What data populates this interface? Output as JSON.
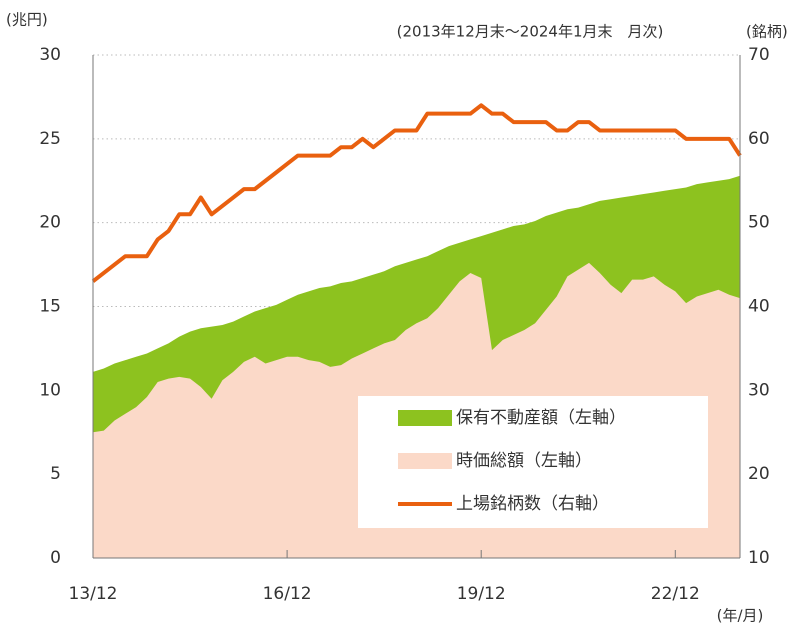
{
  "chart_data": {
    "type": "area_line",
    "subtitle": "(2013年12月末～2024年1月末　月次)",
    "y_label": "(兆円)",
    "y2_label": "(銘柄)",
    "x_label": "(年/月)",
    "categories": [
      "13/12",
      null,
      null,
      null,
      null,
      null,
      null,
      null,
      null,
      null,
      null,
      null,
      null,
      null,
      null,
      null,
      null,
      null,
      "16/12",
      null,
      null,
      null,
      null,
      null,
      null,
      null,
      null,
      null,
      null,
      null,
      null,
      null,
      null,
      null,
      null,
      null,
      "19/12",
      null,
      null,
      null,
      null,
      null,
      null,
      null,
      null,
      null,
      null,
      null,
      null,
      null,
      null,
      null,
      null,
      null,
      "22/12",
      null,
      null,
      null,
      null,
      null,
      null
    ],
    "ylim": [
      0,
      30
    ],
    "yticks": [
      0,
      5,
      10,
      15,
      20,
      25,
      30
    ],
    "y2lim": [
      10,
      70
    ],
    "y2ticks": [
      10,
      20,
      30,
      40,
      50,
      60,
      70
    ],
    "grid": true,
    "series": [
      {
        "name": "保有不動産額（左軸）",
        "color": "#8dc21f",
        "kind": "area",
        "values": [
          11.1,
          11.3,
          11.6,
          11.8,
          12.0,
          12.2,
          12.5,
          12.8,
          13.2,
          13.5,
          13.7,
          13.8,
          13.9,
          14.1,
          14.4,
          14.7,
          14.9,
          15.1,
          15.4,
          15.7,
          15.9,
          16.1,
          16.2,
          16.4,
          16.5,
          16.7,
          16.9,
          17.1,
          17.4,
          17.6,
          17.8,
          18.0,
          18.3,
          18.6,
          18.8,
          19.0,
          19.2,
          19.4,
          19.6,
          19.8,
          19.9,
          20.1,
          20.4,
          20.6,
          20.8,
          20.9,
          21.1,
          21.3,
          21.4,
          21.5,
          21.6,
          21.7,
          21.8,
          21.9,
          22.0,
          22.1,
          22.3,
          22.4,
          22.5,
          22.6,
          22.8
        ]
      },
      {
        "name": "時価総額（左軸）",
        "color": "#fbd9c8",
        "kind": "area",
        "values": [
          7.5,
          7.6,
          8.2,
          8.6,
          9.0,
          9.6,
          10.5,
          10.7,
          10.8,
          10.7,
          10.2,
          9.5,
          10.6,
          11.1,
          11.7,
          12.0,
          11.6,
          11.8,
          12.0,
          12.0,
          11.8,
          11.7,
          11.4,
          11.5,
          11.9,
          12.2,
          12.5,
          12.8,
          13.0,
          13.6,
          14.0,
          14.3,
          14.9,
          15.7,
          16.5,
          17.0,
          16.7,
          12.4,
          13.0,
          13.3,
          13.6,
          14.0,
          14.8,
          15.6,
          16.8,
          17.2,
          17.6,
          17.0,
          16.3,
          15.8,
          16.6,
          16.6,
          16.8,
          16.3,
          15.9,
          15.2,
          15.6,
          15.8,
          16.0,
          15.7,
          15.5
        ]
      },
      {
        "name": "上場銘柄数（右軸）",
        "color": "#e9600f",
        "kind": "line",
        "axis": "y2",
        "values": [
          43,
          44,
          45,
          46,
          46,
          46,
          48,
          49,
          51,
          51,
          53,
          51,
          52,
          53,
          54,
          54,
          55,
          56,
          57,
          58,
          58,
          58,
          58,
          59,
          59,
          60,
          59,
          60,
          61,
          61,
          61,
          63,
          63,
          63,
          63,
          63,
          64,
          63,
          63,
          62,
          62,
          62,
          62,
          61,
          61,
          62,
          62,
          61,
          61,
          61,
          61,
          61,
          61,
          61,
          61,
          60,
          60,
          60,
          60,
          60,
          58
        ]
      }
    ]
  }
}
